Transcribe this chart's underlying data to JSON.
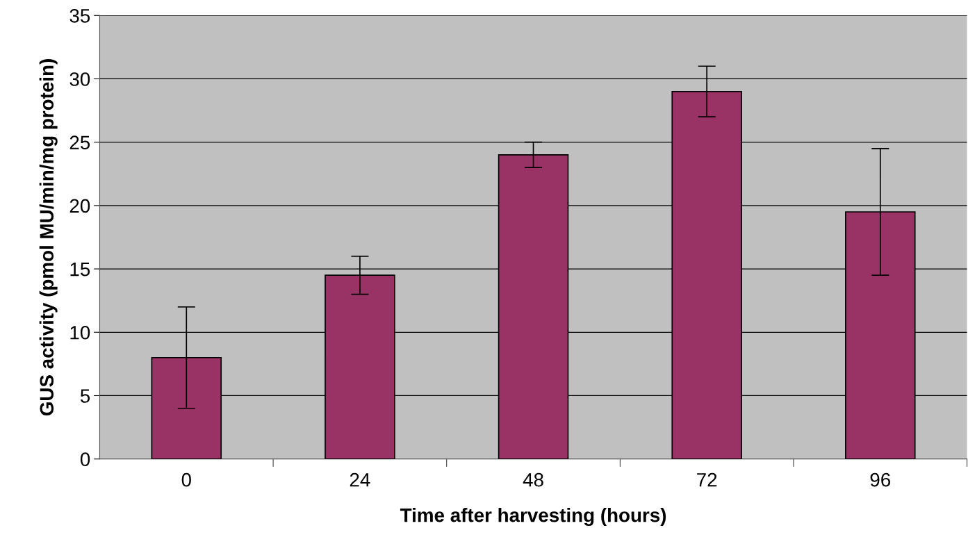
{
  "chart_data": {
    "type": "bar",
    "xlabel": "Time after harvesting (hours)",
    "ylabel": "GUS activity (pmol MU/min/mg protein)",
    "categories": [
      "0",
      "24",
      "48",
      "72",
      "96"
    ],
    "values": [
      8,
      14.5,
      24,
      29,
      19.5
    ],
    "errors": [
      4,
      1.5,
      1,
      2,
      5
    ],
    "color": "#993366",
    "ylim": [
      0,
      35
    ],
    "yticks": [
      0,
      5,
      10,
      15,
      20,
      25,
      30,
      35
    ],
    "grid": "y"
  }
}
